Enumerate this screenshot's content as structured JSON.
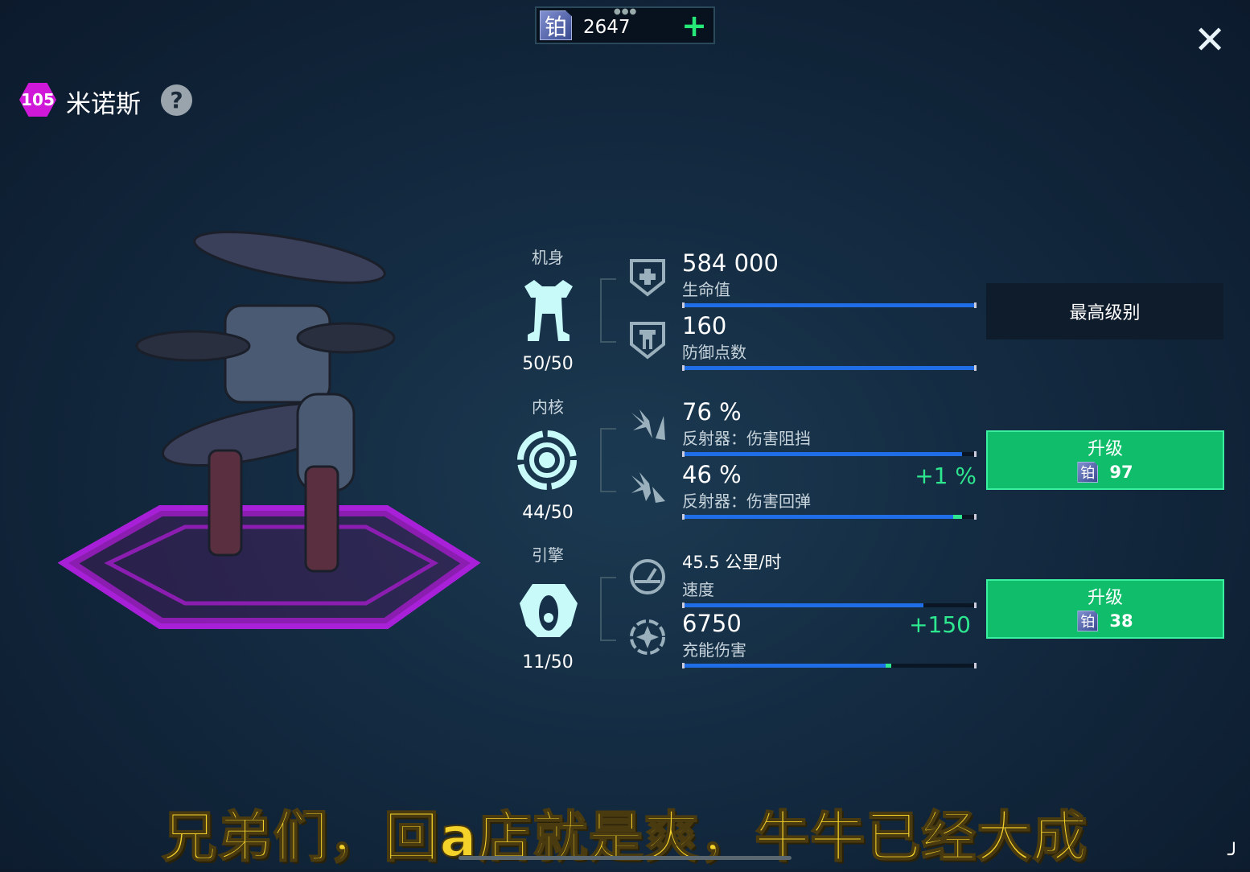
{
  "currency": {
    "icon": "铂",
    "amount": "2647",
    "add_label": "+"
  },
  "close_label": "✕",
  "robot": {
    "level": "105",
    "name": "米诺斯",
    "help_label": "?"
  },
  "colors": {
    "accent": "#2ee890",
    "upgrade_bg": "#10bd6a",
    "bar": "#1f6ee8",
    "level_badge": "#d018d8",
    "platform": "#b020e0"
  },
  "modules": [
    {
      "category": "机身",
      "icon": "mech-body-icon",
      "progress": "50/50"
    },
    {
      "category": "内核",
      "icon": "core-icon",
      "progress": "44/50"
    },
    {
      "category": "引擎",
      "icon": "engine-icon",
      "progress": "11/50"
    }
  ],
  "stats": [
    {
      "value": "584 000",
      "label": "生命值",
      "icon": "health-shield-icon",
      "fill_percent": 100,
      "increase_percent": 0,
      "bonus": ""
    },
    {
      "value": "160",
      "label": "防御点数",
      "icon": "armor-shield-icon",
      "fill_percent": 100,
      "increase_percent": 0,
      "bonus": ""
    },
    {
      "value": "76 %",
      "label": "反射器：伤害阻挡",
      "icon": "reflector-block-icon",
      "fill_percent": 95,
      "increase_percent": 0,
      "bonus": ""
    },
    {
      "value": "46 %",
      "label": "反射器：伤害回弹",
      "icon": "reflector-rebound-icon",
      "fill_percent": 92,
      "increase_percent": 3,
      "bonus": "+1 %"
    },
    {
      "value": "45.5 公里/时",
      "label": "速度",
      "icon": "speedometer-icon",
      "fill_percent": 82,
      "increase_percent": 0,
      "bonus": ""
    },
    {
      "value": "6750",
      "label": "充能伤害",
      "icon": "charge-damage-icon",
      "fill_percent": 69,
      "increase_percent": 2,
      "bonus": "+150"
    }
  ],
  "actions": {
    "max_level_label": "最高级别",
    "upgrades": [
      {
        "label": "升级",
        "icon": "铂",
        "cost": "97"
      },
      {
        "label": "升级",
        "icon": "铂",
        "cost": "38"
      }
    ]
  },
  "subtitle": "兄弟们，回a店就是爽，牛牛已经大成"
}
